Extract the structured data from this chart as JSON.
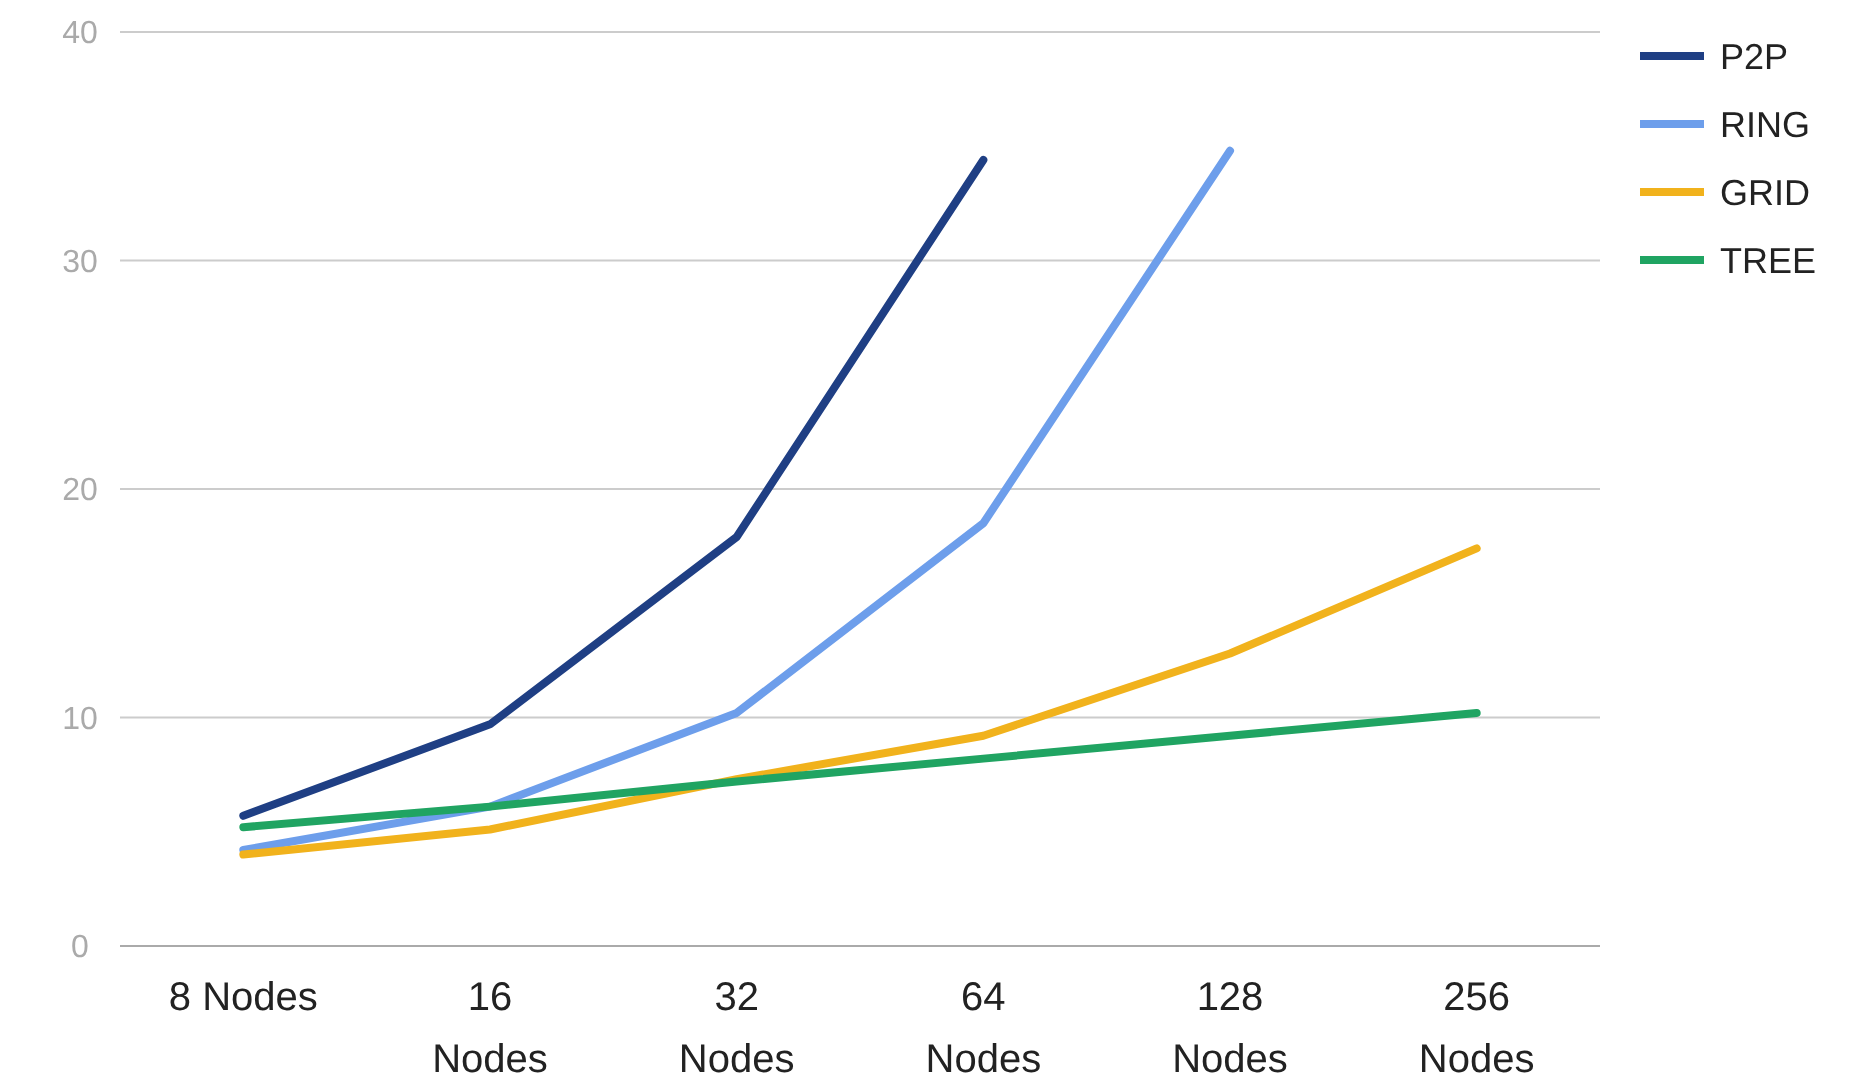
{
  "chart_data": {
    "type": "line",
    "categories": [
      "8 Nodes",
      "16 Nodes",
      "32 Nodes",
      "64 Nodes",
      "128 Nodes",
      "256 Nodes"
    ],
    "series": [
      {
        "name": "P2P",
        "color": "#1f3f84",
        "values": [
          5.7,
          9.7,
          17.9,
          34.4,
          null,
          null
        ]
      },
      {
        "name": "RING",
        "color": "#6d9eeb",
        "values": [
          4.2,
          6.1,
          10.2,
          18.5,
          34.8,
          null
        ]
      },
      {
        "name": "GRID",
        "color": "#f1b21c",
        "values": [
          4.0,
          5.1,
          7.3,
          9.2,
          12.8,
          17.4
        ]
      },
      {
        "name": "TREE",
        "color": "#20a462",
        "values": [
          5.2,
          6.1,
          7.2,
          8.2,
          9.2,
          10.2
        ]
      }
    ],
    "ylim": [
      0,
      40
    ],
    "yticks": [
      0,
      10,
      20,
      30,
      40
    ],
    "grid": "y",
    "legend": "top right",
    "marker": "none",
    "line_style": "solid"
  }
}
